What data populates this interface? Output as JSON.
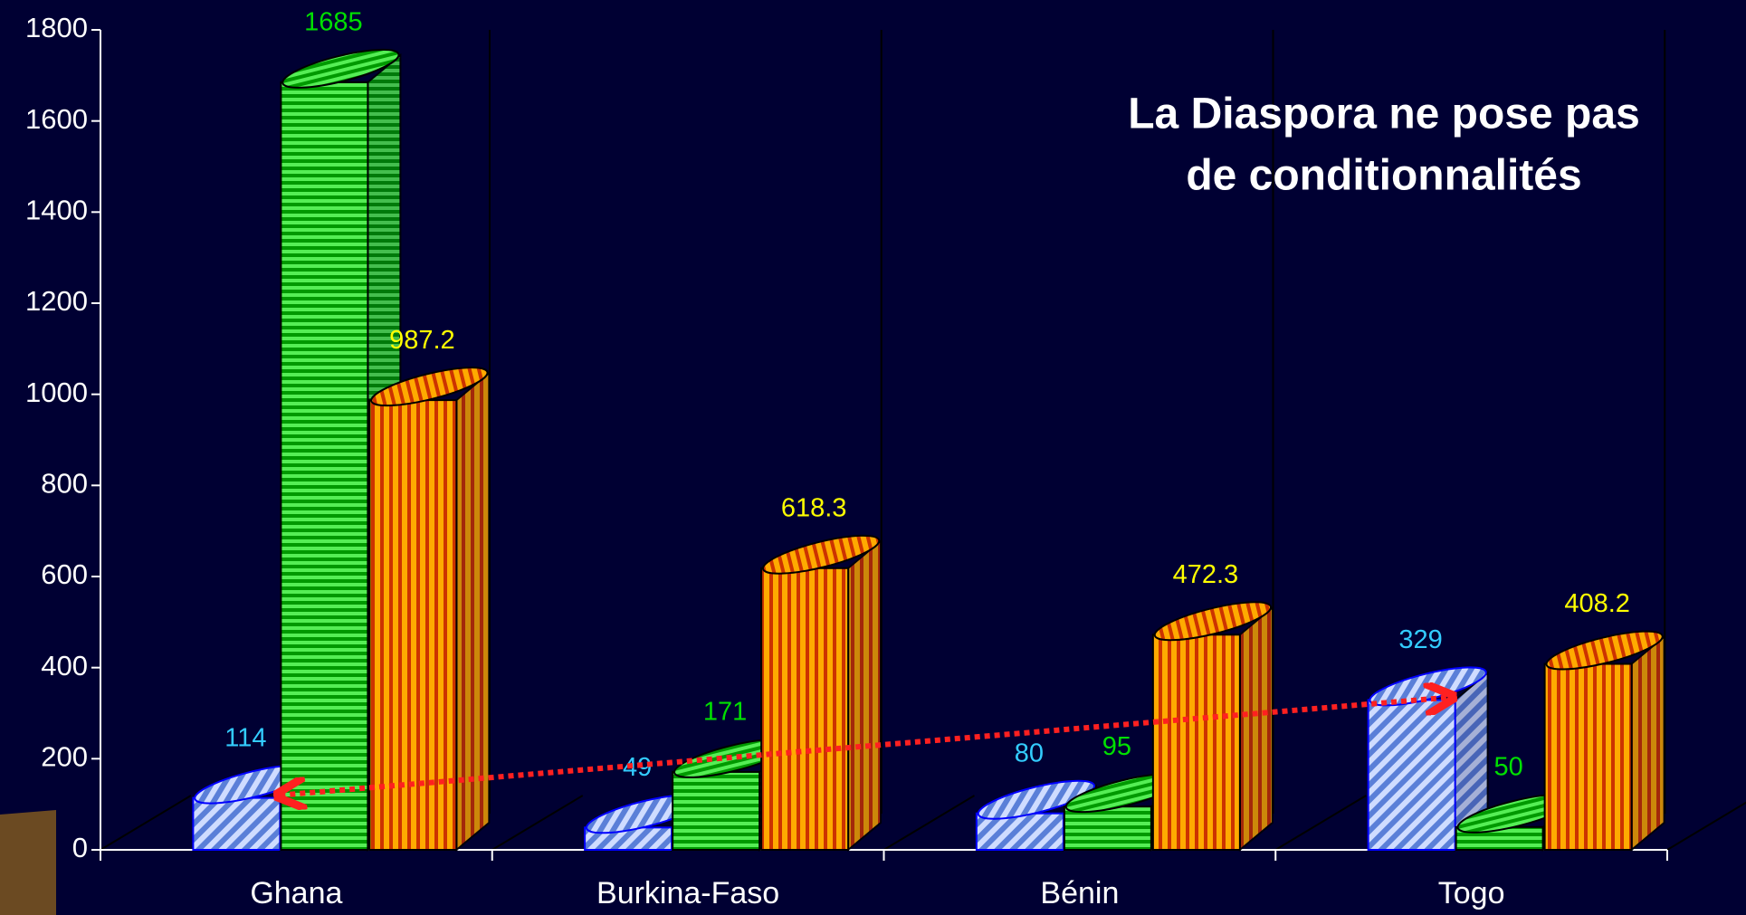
{
  "chart_data": {
    "type": "bar3d",
    "annotations": [
      "La Diaspora ne pose pas",
      "de conditionnalités"
    ],
    "categories": [
      "Ghana",
      "Burkina-Faso",
      "Bénin",
      "Togo"
    ],
    "series": [
      {
        "color": "#7f9fe8",
        "label_color": "#33ccff",
        "values": [
          114,
          49,
          80,
          329
        ]
      },
      {
        "color": "#00c000",
        "label_color": "#00e000",
        "values": [
          1685,
          171,
          95,
          50
        ]
      },
      {
        "color": "#ff9900",
        "label_color": "#ffff00",
        "values": [
          987.2,
          618.3,
          472.3,
          408.2
        ]
      }
    ],
    "ylim": [
      0,
      1800
    ],
    "yticks": [
      0,
      200,
      400,
      600,
      800,
      1000,
      1200,
      1400,
      1600,
      1800
    ]
  }
}
